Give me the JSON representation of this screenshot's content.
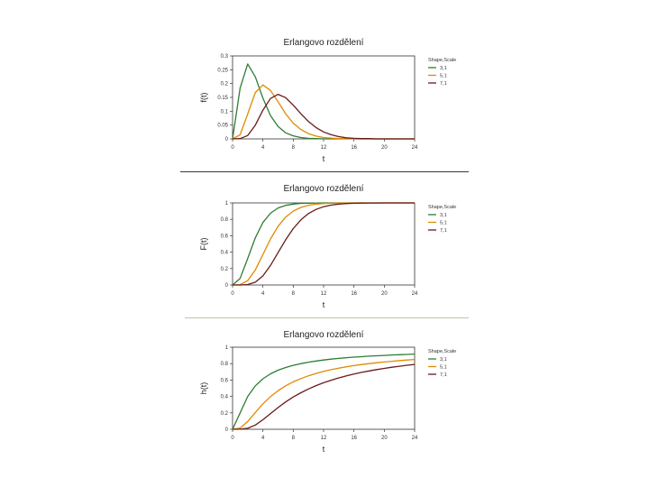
{
  "chart_data": [
    {
      "type": "line",
      "title": "Erlangovo rozdělení",
      "xlabel": "t",
      "ylabel": "f(t)",
      "xlim": [
        0,
        24
      ],
      "ylim": [
        0,
        0.3
      ],
      "xticks": [
        "0",
        "4",
        "8",
        "12",
        "16",
        "20",
        "24"
      ],
      "yticks": [
        "0",
        "0.05",
        "0.1",
        "0.15",
        "0.2",
        "0.25",
        "0.3"
      ],
      "legend_title": "Shape,Scale",
      "legend_position": "right",
      "x": [
        0,
        1,
        2,
        3,
        4,
        5,
        6,
        7,
        8,
        9,
        10,
        11,
        12,
        13,
        14,
        15,
        16,
        17,
        18,
        19,
        20,
        21,
        22,
        23,
        24
      ],
      "series": [
        {
          "name": "3,1",
          "values": [
            0,
            0.184,
            0.271,
            0.224,
            0.147,
            0.084,
            0.045,
            0.022,
            0.011,
            0.005,
            0.002,
            0.001,
            0,
            0,
            0,
            0,
            0,
            0,
            0,
            0,
            0,
            0,
            0,
            0,
            0
          ]
        },
        {
          "name": "5,1",
          "values": [
            0,
            0.015,
            0.09,
            0.168,
            0.195,
            0.175,
            0.134,
            0.091,
            0.057,
            0.034,
            0.019,
            0.01,
            0.005,
            0.003,
            0.001,
            0.001,
            0,
            0,
            0,
            0,
            0,
            0,
            0,
            0,
            0
          ]
        },
        {
          "name": "7,1",
          "values": [
            0,
            0.001,
            0.012,
            0.05,
            0.104,
            0.146,
            0.161,
            0.149,
            0.122,
            0.091,
            0.063,
            0.041,
            0.025,
            0.015,
            0.008,
            0.004,
            0.002,
            0.001,
            0.001,
            0,
            0,
            0,
            0,
            0,
            0
          ]
        }
      ]
    },
    {
      "type": "line",
      "title": "Erlangovo rozdělení",
      "xlabel": "t",
      "ylabel": "F(t)",
      "xlim": [
        0,
        24
      ],
      "ylim": [
        0,
        1
      ],
      "xticks": [
        "0",
        "4",
        "8",
        "12",
        "16",
        "20",
        "24"
      ],
      "yticks": [
        "0",
        "0.2",
        "0.4",
        "0.6",
        "0.8",
        "1"
      ],
      "legend_title": "Shape,Scale",
      "legend_position": "right",
      "x": [
        0,
        1,
        2,
        3,
        4,
        5,
        6,
        7,
        8,
        9,
        10,
        11,
        12,
        13,
        14,
        15,
        16,
        17,
        18,
        19,
        20,
        21,
        22,
        23,
        24
      ],
      "series": [
        {
          "name": "3,1",
          "values": [
            0,
            0.08,
            0.323,
            0.577,
            0.762,
            0.875,
            0.938,
            0.97,
            0.986,
            0.994,
            0.997,
            0.999,
            1,
            1,
            1,
            1,
            1,
            1,
            1,
            1,
            1,
            1,
            1,
            1,
            1
          ]
        },
        {
          "name": "5,1",
          "values": [
            0,
            0.004,
            0.053,
            0.185,
            0.371,
            0.56,
            0.715,
            0.827,
            0.9,
            0.945,
            0.971,
            0.985,
            0.992,
            0.996,
            0.998,
            0.999,
            1,
            1,
            1,
            1,
            1,
            1,
            1,
            1,
            1
          ]
        },
        {
          "name": "7,1",
          "values": [
            0,
            0,
            0.005,
            0.034,
            0.111,
            0.238,
            0.394,
            0.55,
            0.687,
            0.793,
            0.87,
            0.921,
            0.954,
            0.974,
            0.986,
            0.992,
            0.996,
            0.998,
            0.999,
            0.999,
            1,
            1,
            1,
            1,
            1
          ]
        }
      ]
    },
    {
      "type": "line",
      "title": "Erlangovo rozdělení",
      "xlabel": "t",
      "ylabel": "h(t)",
      "xlim": [
        0,
        24
      ],
      "ylim": [
        0,
        1
      ],
      "xticks": [
        "0",
        "4",
        "8",
        "12",
        "16",
        "20",
        "24"
      ],
      "yticks": [
        "0",
        "0.2",
        "0.4",
        "0.6",
        "0.8",
        "1"
      ],
      "legend_title": "Shape,Scale",
      "legend_position": "right",
      "x": [
        0,
        1,
        2,
        3,
        4,
        5,
        6,
        7,
        8,
        9,
        10,
        11,
        12,
        13,
        14,
        15,
        16,
        17,
        18,
        19,
        20,
        21,
        22,
        23,
        24
      ],
      "series": [
        {
          "name": "3,1",
          "values": [
            0,
            0.2,
            0.4,
            0.53,
            0.615,
            0.676,
            0.72,
            0.753,
            0.779,
            0.8,
            0.818,
            0.832,
            0.844,
            0.855,
            0.864,
            0.872,
            0.879,
            0.885,
            0.891,
            0.896,
            0.9,
            0.905,
            0.909,
            0.912,
            0.916
          ]
        },
        {
          "name": "5,1",
          "values": [
            0,
            0.015,
            0.095,
            0.206,
            0.31,
            0.398,
            0.47,
            0.53,
            0.578,
            0.618,
            0.652,
            0.68,
            0.705,
            0.726,
            0.745,
            0.761,
            0.776,
            0.789,
            0.8,
            0.811,
            0.82,
            0.829,
            0.837,
            0.844,
            0.851
          ]
        },
        {
          "name": "7,1",
          "values": [
            0,
            0.001,
            0.012,
            0.052,
            0.117,
            0.191,
            0.265,
            0.333,
            0.393,
            0.445,
            0.491,
            0.532,
            0.567,
            0.598,
            0.626,
            0.651,
            0.673,
            0.693,
            0.711,
            0.727,
            0.742,
            0.756,
            0.768,
            0.78,
            0.79
          ]
        }
      ]
    }
  ],
  "colors": {
    "series": [
      "#2e7d32",
      "#e08a00",
      "#6a1a1a"
    ],
    "axis": "#333333",
    "separator_dark": "#3a3a3a",
    "separator_light": "#c9c0a8"
  }
}
